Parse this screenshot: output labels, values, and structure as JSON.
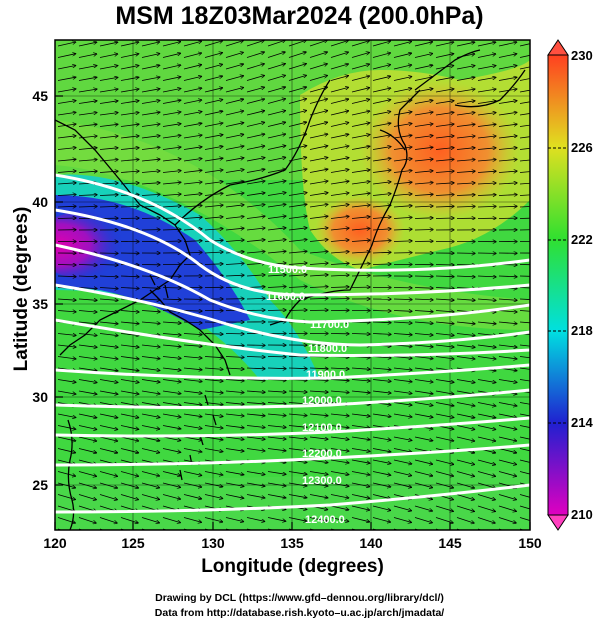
{
  "title": "MSM 18Z03Mar2024 (200.0hPa)",
  "x_axis": {
    "label": "Longitude (degrees)",
    "range": [
      120,
      150
    ],
    "ticks": [
      "120",
      "125",
      "130",
      "135",
      "140",
      "145",
      "150"
    ]
  },
  "y_axis": {
    "label": "Latitude  (degrees)",
    "range": [
      22.4,
      47.6
    ],
    "ticks": [
      "25",
      "30",
      "35",
      "40",
      "45"
    ]
  },
  "colorbar": {
    "range": [
      210,
      230
    ],
    "ticks": [
      "210",
      "214",
      "218",
      "222",
      "226",
      "230"
    ],
    "colors": [
      "#e000c0",
      "#2020d0",
      "#00e0e0",
      "#30e030",
      "#e0e020",
      "#ff7020",
      "#ff4020"
    ]
  },
  "contours": {
    "color": "#ffffff",
    "labels": [
      "11500.0",
      "11600.0",
      "11700.0",
      "11800.0",
      "11900.0",
      "12000.0",
      "12100.0",
      "12200.0",
      "12300.0",
      "12400.0"
    ]
  },
  "credits": [
    "Drawing by DCL (https://www.gfd–dennou.org/library/dcl/)",
    "Data from http://database.rish.kyoto–u.ac.jp/arch/jmadata/"
  ]
}
